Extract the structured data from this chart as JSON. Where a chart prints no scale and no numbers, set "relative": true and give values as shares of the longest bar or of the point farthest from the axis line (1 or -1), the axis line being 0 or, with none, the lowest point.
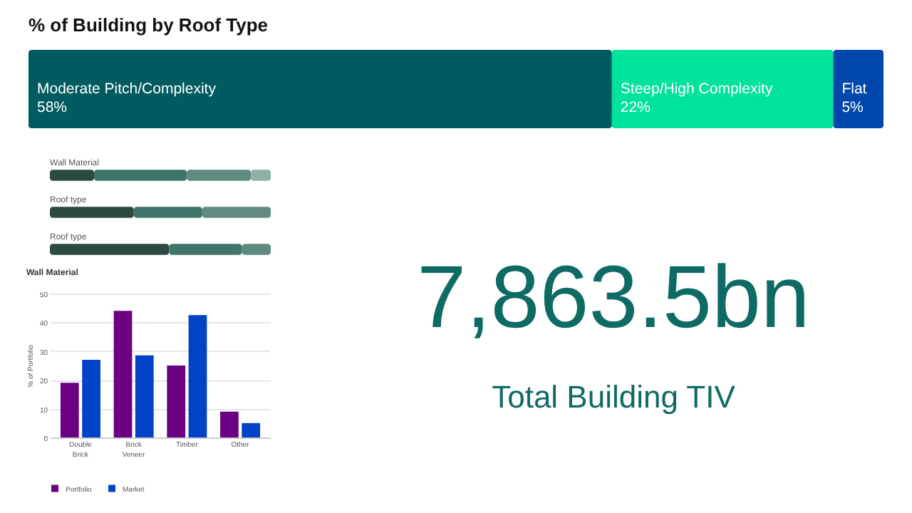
{
  "chart_data": [
    {
      "type": "bar",
      "orientation": "horizontal",
      "stacked": true,
      "title": "% of Building by Roof Type",
      "categories": [
        null
      ],
      "tick_labels": false,
      "series": [
        {
          "name": "Moderate Pitch/Complexity",
          "color": "#005b60",
          "values": [
            58
          ],
          "value_labels": [
            "58%"
          ]
        },
        {
          "name": "Steep/High Complexity",
          "color": "#00e39c",
          "values": [
            22
          ],
          "value_labels": [
            "22%"
          ]
        },
        {
          "name": "Flat",
          "color": "#0047ab",
          "values": [
            5
          ],
          "value_labels": [
            "5%"
          ]
        }
      ]
    },
    {
      "type": "bar",
      "orientation": "horizontal",
      "stacked": true,
      "relative": true,
      "categories": [
        "Wall Material",
        "Roof type",
        "Roof type"
      ],
      "series": [
        {
          "color": "#2b4a42",
          "values": [
            0.2,
            0.38,
            0.54
          ]
        },
        {
          "color": "#3e7469",
          "values": [
            0.42,
            0.31,
            0.33
          ]
        },
        {
          "color": "#5f8b80",
          "values": [
            0.29,
            0.31,
            0.13
          ]
        },
        {
          "color": "#8fb0a6",
          "values": [
            0.09,
            null,
            null
          ]
        }
      ]
    },
    {
      "type": "bar",
      "title": "Wall Material",
      "categories": [
        "Double Brick",
        "Brick Veneer",
        "Timber",
        "Other"
      ],
      "ylabel": "% of Portfolio",
      "ylim": [
        0,
        50
      ],
      "yticks": [
        0,
        10,
        20,
        30,
        40,
        50
      ],
      "grid": "y",
      "legend": "bottom",
      "series": [
        {
          "name": "Portfolio",
          "color": "#6b0082",
          "values": [
            19,
            44,
            25,
            9
          ]
        },
        {
          "name": "Market",
          "color": "#0043c6",
          "values": [
            27,
            28.5,
            42.5,
            5
          ]
        }
      ]
    },
    {
      "type": "other",
      "annotations": [
        "7,863.5bn",
        "Total Building TIV"
      ]
    }
  ]
}
